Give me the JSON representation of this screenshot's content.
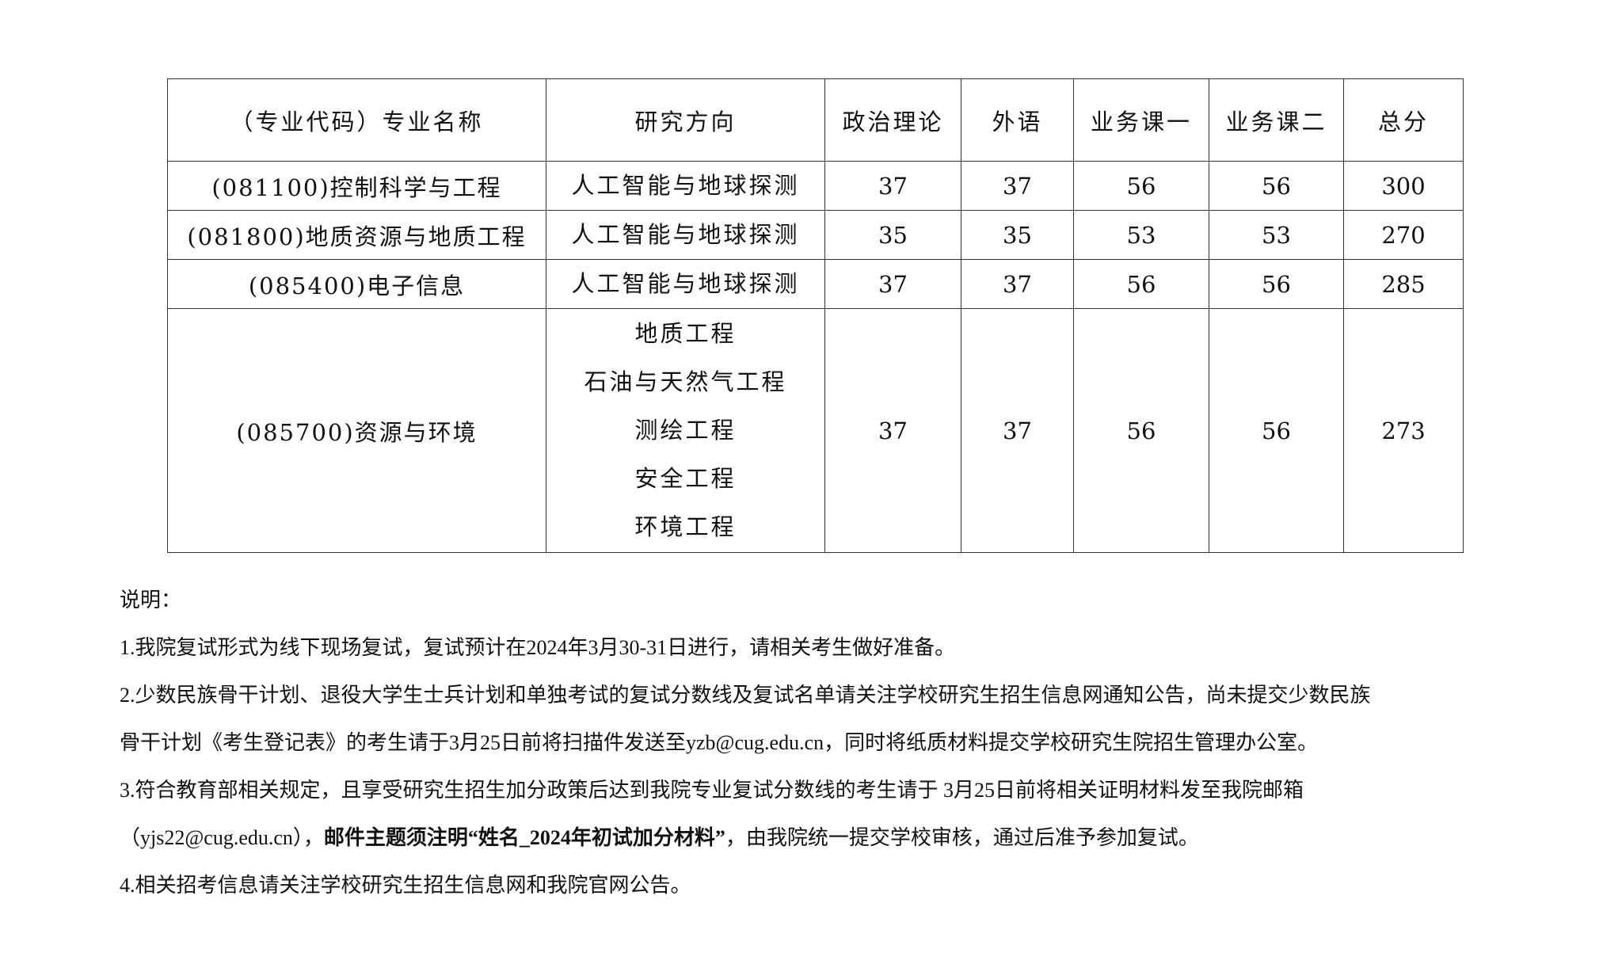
{
  "table": {
    "headers": [
      "（专业代码）专业名称",
      "研究方向",
      "政治理论",
      "外语",
      "业务课一",
      "业务课二",
      "总分"
    ],
    "rows": [
      {
        "name": "(081100)控制科学与工程",
        "directions": [
          "人工智能与地球探测"
        ],
        "politics": "37",
        "foreign": "37",
        "course1": "56",
        "course2": "56",
        "total": "300"
      },
      {
        "name": "(081800)地质资源与地质工程",
        "directions": [
          "人工智能与地球探测"
        ],
        "politics": "35",
        "foreign": "35",
        "course1": "53",
        "course2": "53",
        "total": "270"
      },
      {
        "name": "(085400)电子信息",
        "directions": [
          "人工智能与地球探测"
        ],
        "politics": "37",
        "foreign": "37",
        "course1": "56",
        "course2": "56",
        "total": "285"
      },
      {
        "name": "(085700)资源与环境",
        "directions": [
          "地质工程",
          "石油与天然气工程",
          "测绘工程",
          "安全工程",
          "环境工程"
        ],
        "politics": "37",
        "foreign": "37",
        "course1": "56",
        "course2": "56",
        "total": "273"
      }
    ]
  },
  "notes": {
    "title": "说明：",
    "line1": "1.我院复试形式为线下现场复试，复试预计在2024年3月30-31日进行，请相关考生做好准备。",
    "line2a": "2.少数民族骨干计划、退役大学生士兵计划和单独考试的复试分数线及复试名单请关注学校研究生招生信息网通知公告，尚未提交少数民族",
    "line2b": "骨干计划《考生登记表》的考生请于3月25日前将扫描件发送至yzb@cug.edu.cn，同时将纸质材料提交学校研究生院招生管理办公室。",
    "line3a": "3.符合教育部相关规定，且享受研究生招生加分政策后达到我院专业复试分数线的考生请于 3月25日前将相关证明材料发至我院邮箱",
    "line3b_pre": "（yjs22@cug.edu.cn），",
    "line3b_bold": "邮件主题须注明“姓名_2024年初试加分材料”",
    "line3b_post": "，由我院统一提交学校审核，通过后准予参加复试。",
    "line4": "4.相关招考信息请关注学校研究生招生信息网和我院官网公告。"
  }
}
